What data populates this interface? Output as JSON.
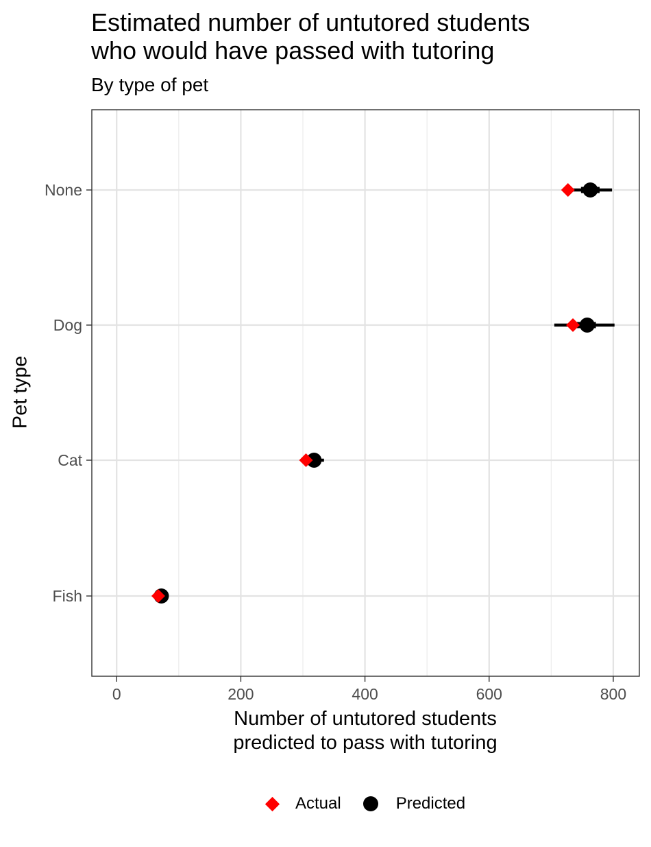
{
  "chart_data": {
    "type": "scatter",
    "title_lines": [
      "Estimated number of untutored students",
      "who would have passed with tutoring"
    ],
    "subtitle": "By type of pet",
    "xlabel_lines": [
      "Number of untutored students",
      "predicted to pass with tutoring"
    ],
    "ylabel": "Pet type",
    "xlim": [
      -40,
      842
    ],
    "xticks": [
      0,
      200,
      400,
      600,
      800
    ],
    "categories": [
      "None",
      "Dog",
      "Cat",
      "Fish"
    ],
    "grid": true,
    "legend_position": "bottom",
    "series": [
      {
        "name": "Actual",
        "marker": "diamond",
        "color": "#ff0000",
        "values": [
          727,
          735,
          305,
          67
        ]
      },
      {
        "name": "Predicted",
        "marker": "circle",
        "color": "#000000",
        "values": [
          763,
          758,
          318,
          72
        ],
        "ci_outer": [
          [
            729,
            798
          ],
          [
            705,
            802
          ],
          [
            310,
            334
          ],
          [
            64,
            76
          ]
        ],
        "ci_inner": [
          [
            748,
            778
          ],
          [
            740,
            772
          ],
          [
            312,
            325
          ],
          [
            68,
            75
          ]
        ]
      }
    ]
  }
}
